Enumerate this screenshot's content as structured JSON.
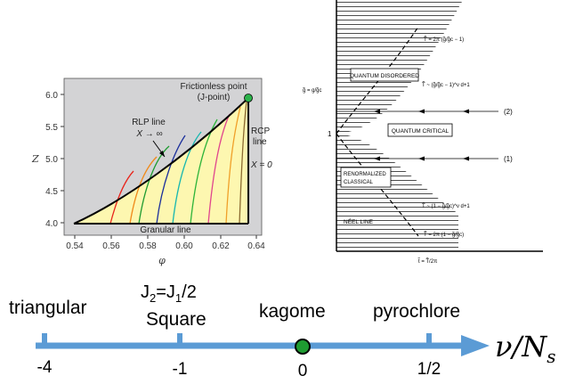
{
  "left_chart": {
    "ylabel": "Z",
    "xlabel": "φ",
    "xticks": [
      "0.54",
      "0.56",
      "0.58",
      "0.60",
      "0.62",
      "0.64"
    ],
    "yticks": [
      "4.0",
      "4.5",
      "5.0",
      "5.5",
      "6.0"
    ],
    "labels": {
      "frictionless_1": "Frictionless point",
      "frictionless_2": "(J-point)",
      "rlp_1": "RLP line",
      "rlp_2": "X → ∞",
      "rcp_1": "RCP",
      "rcp_2": "line",
      "x0": "X = 0",
      "granular": "Granular line"
    },
    "colors": {
      "fill": "#fdf7b0",
      "panel": "#d3d3d5",
      "curves": [
        "#e8251c",
        "#f08a1a",
        "#1e9b31",
        "#1b2f9c",
        "#16b7b0",
        "#2db43a",
        "#e0458e",
        "#f0a02a",
        "#8a6a30"
      ],
      "jpoint": "#2bb34a"
    }
  },
  "right_chart": {
    "labels": {
      "quantum_disordered": "QUANTUM DISORDERED",
      "quantum_critical": "QUANTUM CRITICAL",
      "renorm_1": "RENORMALIZED",
      "renorm_2": "CLASSICAL",
      "neel": "NÉEL LINE",
      "arrow_2": "(2)",
      "arrow_1": "(1)",
      "one": "1",
      "yaxis": "g̃ = g/g̃c",
      "xaxis": "t̃ = T̃/2π",
      "f1": "T̃ = 2π (g̃/g̃c − 1)",
      "f2": "T̃ ~ (g̃/g̃c − 1)^ν d+1",
      "f3": "T̃ ~ (1 − g̃/g̃c)^ν d+1",
      "f4": "T̃ = 2π (1 − g̃/g̃c)"
    }
  },
  "scale": {
    "names": {
      "triangular": "triangular",
      "square_top": "J₂=J₁/2",
      "square": "Square",
      "kagome": "kagome",
      "pyrochlore": "pyrochlore"
    },
    "ticks": {
      "m4": "-4",
      "m1": "-1",
      "zero": "0",
      "half": "1/2"
    },
    "axis_label": "ν/Nₛ",
    "colors": {
      "line": "#5b9bd5",
      "dot": "#1e9b31"
    }
  }
}
